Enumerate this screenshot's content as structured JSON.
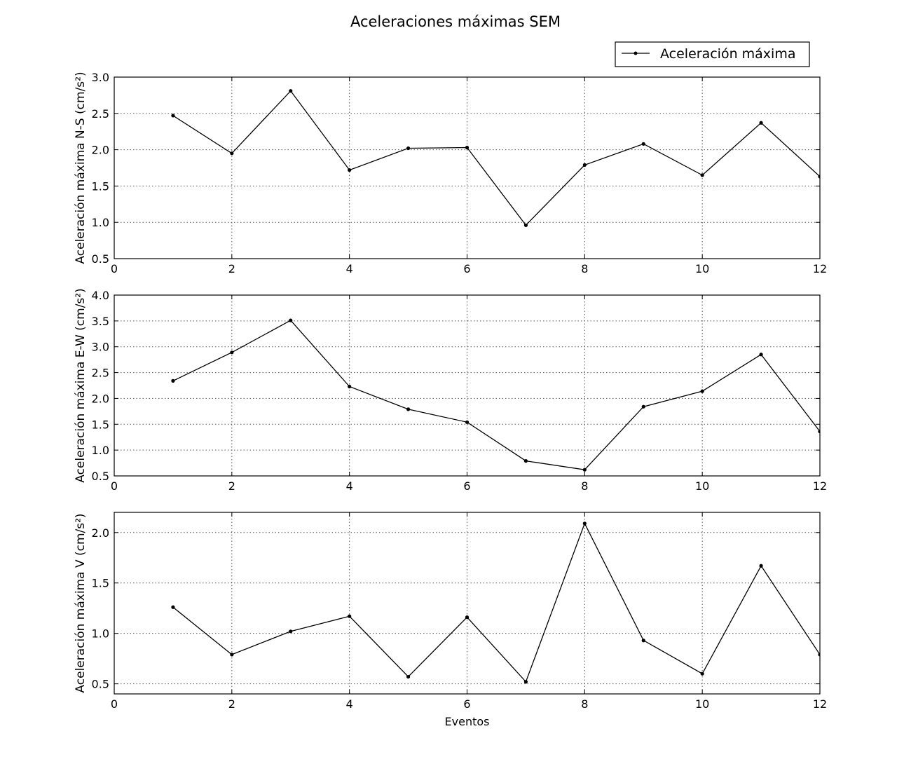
{
  "title": "Aceleraciones máximas SEM",
  "legend": {
    "label": "Aceleración máxima",
    "placement": "top-right"
  },
  "colors": {
    "line": "#000000",
    "axes": "#000000",
    "grid": "#555555",
    "background": "#ffffff"
  },
  "chart_data": [
    {
      "type": "line",
      "ylabel": "Aceleración máxima N-S (cm/s²)",
      "xlabel": "",
      "xlim": [
        0,
        12
      ],
      "ylim": [
        0.5,
        3.0
      ],
      "xticks": [
        0,
        2,
        4,
        6,
        8,
        10,
        12
      ],
      "yticks": [
        0.5,
        1.0,
        1.5,
        2.0,
        2.5,
        3.0
      ],
      "grid": true,
      "series": [
        {
          "x": [
            1,
            2,
            3,
            4,
            5,
            6,
            7,
            8,
            9,
            10,
            11,
            12
          ],
          "y": [
            2.47,
            1.95,
            2.81,
            1.72,
            2.02,
            2.03,
            0.96,
            1.79,
            2.08,
            1.65,
            2.37,
            1.63
          ]
        }
      ]
    },
    {
      "type": "line",
      "ylabel": "Aceleración máxima E-W (cm/s²)",
      "xlabel": "",
      "xlim": [
        0,
        12
      ],
      "ylim": [
        0.5,
        4.0
      ],
      "xticks": [
        0,
        2,
        4,
        6,
        8,
        10,
        12
      ],
      "yticks": [
        0.5,
        1.0,
        1.5,
        2.0,
        2.5,
        3.0,
        3.5,
        4.0
      ],
      "grid": true,
      "series": [
        {
          "x": [
            1,
            2,
            3,
            4,
            5,
            6,
            7,
            8,
            9,
            10,
            11,
            12
          ],
          "y": [
            2.34,
            2.89,
            3.51,
            2.23,
            1.79,
            1.54,
            0.79,
            0.62,
            1.84,
            2.14,
            2.85,
            1.36
          ]
        }
      ]
    },
    {
      "type": "line",
      "ylabel": "Aceleración máxima V (cm/s²)",
      "xlabel": "Eventos",
      "xlim": [
        0,
        12
      ],
      "ylim": [
        0.4,
        2.2
      ],
      "xticks": [
        0,
        2,
        4,
        6,
        8,
        10,
        12
      ],
      "yticks": [
        0.5,
        1.0,
        1.5,
        2.0
      ],
      "grid": true,
      "series": [
        {
          "x": [
            1,
            2,
            3,
            4,
            5,
            6,
            7,
            8,
            9,
            10,
            11,
            12
          ],
          "y": [
            1.26,
            0.79,
            1.02,
            1.17,
            0.57,
            1.16,
            0.52,
            2.09,
            0.93,
            0.6,
            1.67,
            0.79
          ]
        }
      ]
    }
  ]
}
